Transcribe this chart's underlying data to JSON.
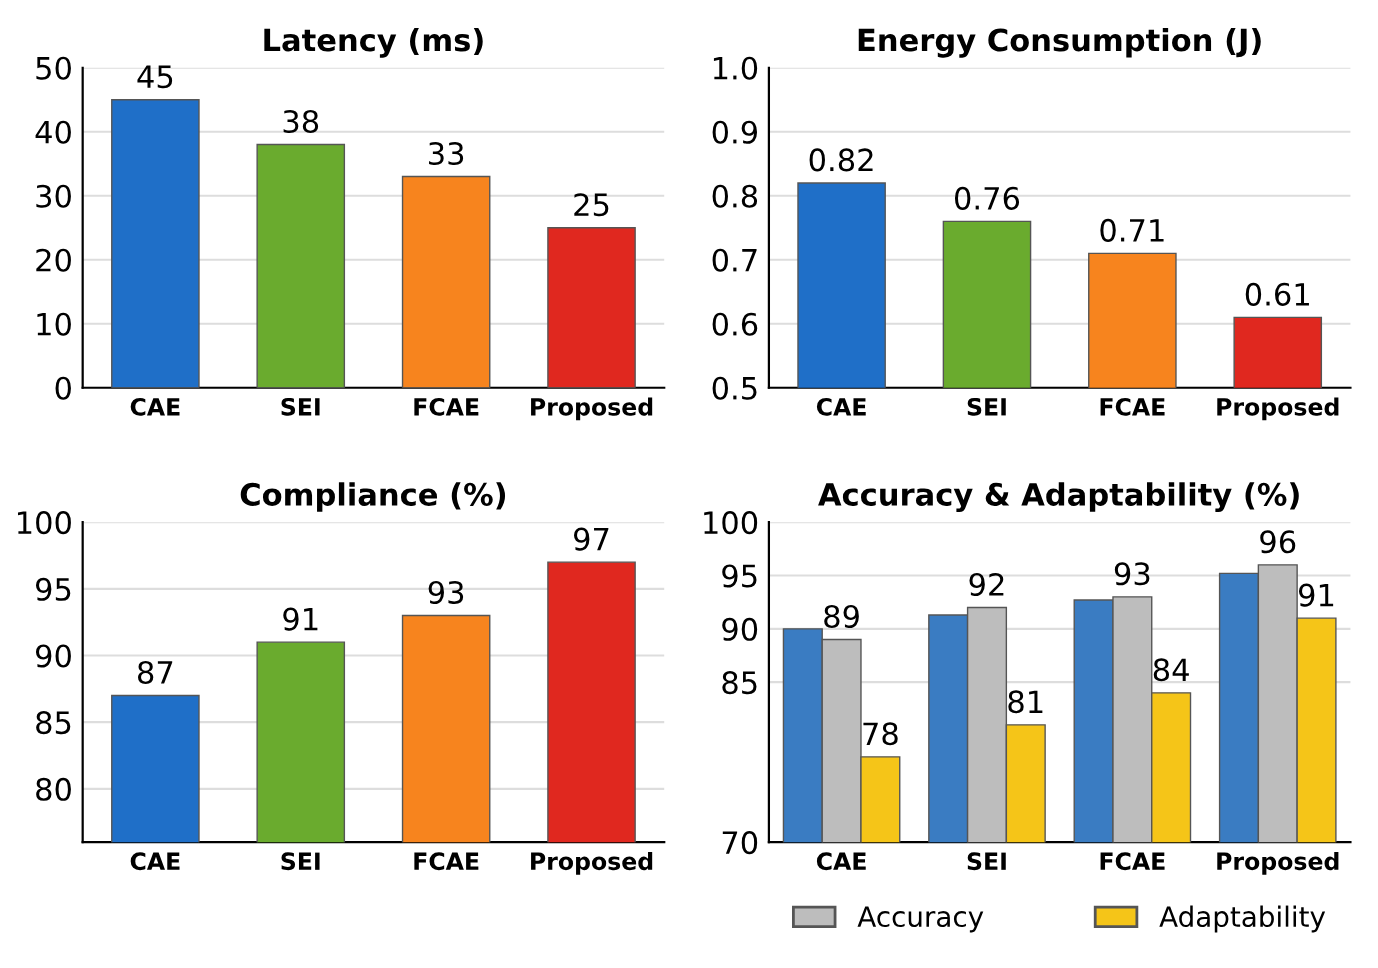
{
  "chart_data": [
    {
      "type": "bar",
      "title": "Latency (ms)",
      "categories": [
        "CAE",
        "SEI",
        "FCAE",
        "Proposed"
      ],
      "values": [
        45,
        38,
        33,
        25
      ],
      "colors": [
        "#1f6fc8",
        "#6aab2e",
        "#f7841e",
        "#e0281f"
      ],
      "ylim": [
        0,
        50
      ],
      "yticks": [
        0,
        10,
        20,
        30,
        40,
        50
      ],
      "grid": "y",
      "data_labels": true
    },
    {
      "type": "bar",
      "title": "Energy Consumption (J)",
      "categories": [
        "CAE",
        "SEI",
        "FCAE",
        "Proposed"
      ],
      "values": [
        0.82,
        0.76,
        0.71,
        0.61
      ],
      "colors": [
        "#1f6fc8",
        "#6aab2e",
        "#f7841e",
        "#e0281f"
      ],
      "ylim": [
        0.5,
        1.0
      ],
      "yticks": [
        0.5,
        0.6,
        0.7,
        0.8,
        0.9,
        {
          "value": 1.0,
          "label": "1.0"
        }
      ],
      "grid": "y",
      "data_labels": true
    },
    {
      "type": "bar",
      "title": "Compliance (%)",
      "categories": [
        "CAE",
        "SEI",
        "FCAE",
        "Proposed"
      ],
      "values": [
        87,
        91,
        93,
        97
      ],
      "colors": [
        "#1f6fc8",
        "#6aab2e",
        "#f7841e",
        "#e0281f"
      ],
      "ylim": [
        76,
        100
      ],
      "yticks": [
        80,
        85,
        90,
        95,
        100
      ],
      "grid": "y",
      "data_labels": true
    },
    {
      "type": "bar",
      "title": "Accuracy & Adaptability (%)",
      "categories": [
        "CAE",
        "SEI",
        "FCAE",
        "Proposed"
      ],
      "series": [
        {
          "color": "#3a7cc2",
          "values": [
            90,
            91.3,
            92.7,
            95.2
          ]
        },
        {
          "name": "Accuracy",
          "color": "#bdbdbd",
          "values": [
            89,
            92,
            93,
            96
          ],
          "value_labels": [
            "89",
            "92",
            "93",
            "96"
          ]
        },
        {
          "name": "Adaptability",
          "color": "#f5c518",
          "values": [
            78,
            81,
            84,
            91
          ],
          "value_labels": [
            "78",
            "81",
            "84",
            "91"
          ]
        }
      ],
      "ylim": [
        70,
        100
      ],
      "yticks": [
        70,
        85,
        90,
        95,
        100
      ],
      "grid": "y",
      "legend": "bottom"
    }
  ]
}
